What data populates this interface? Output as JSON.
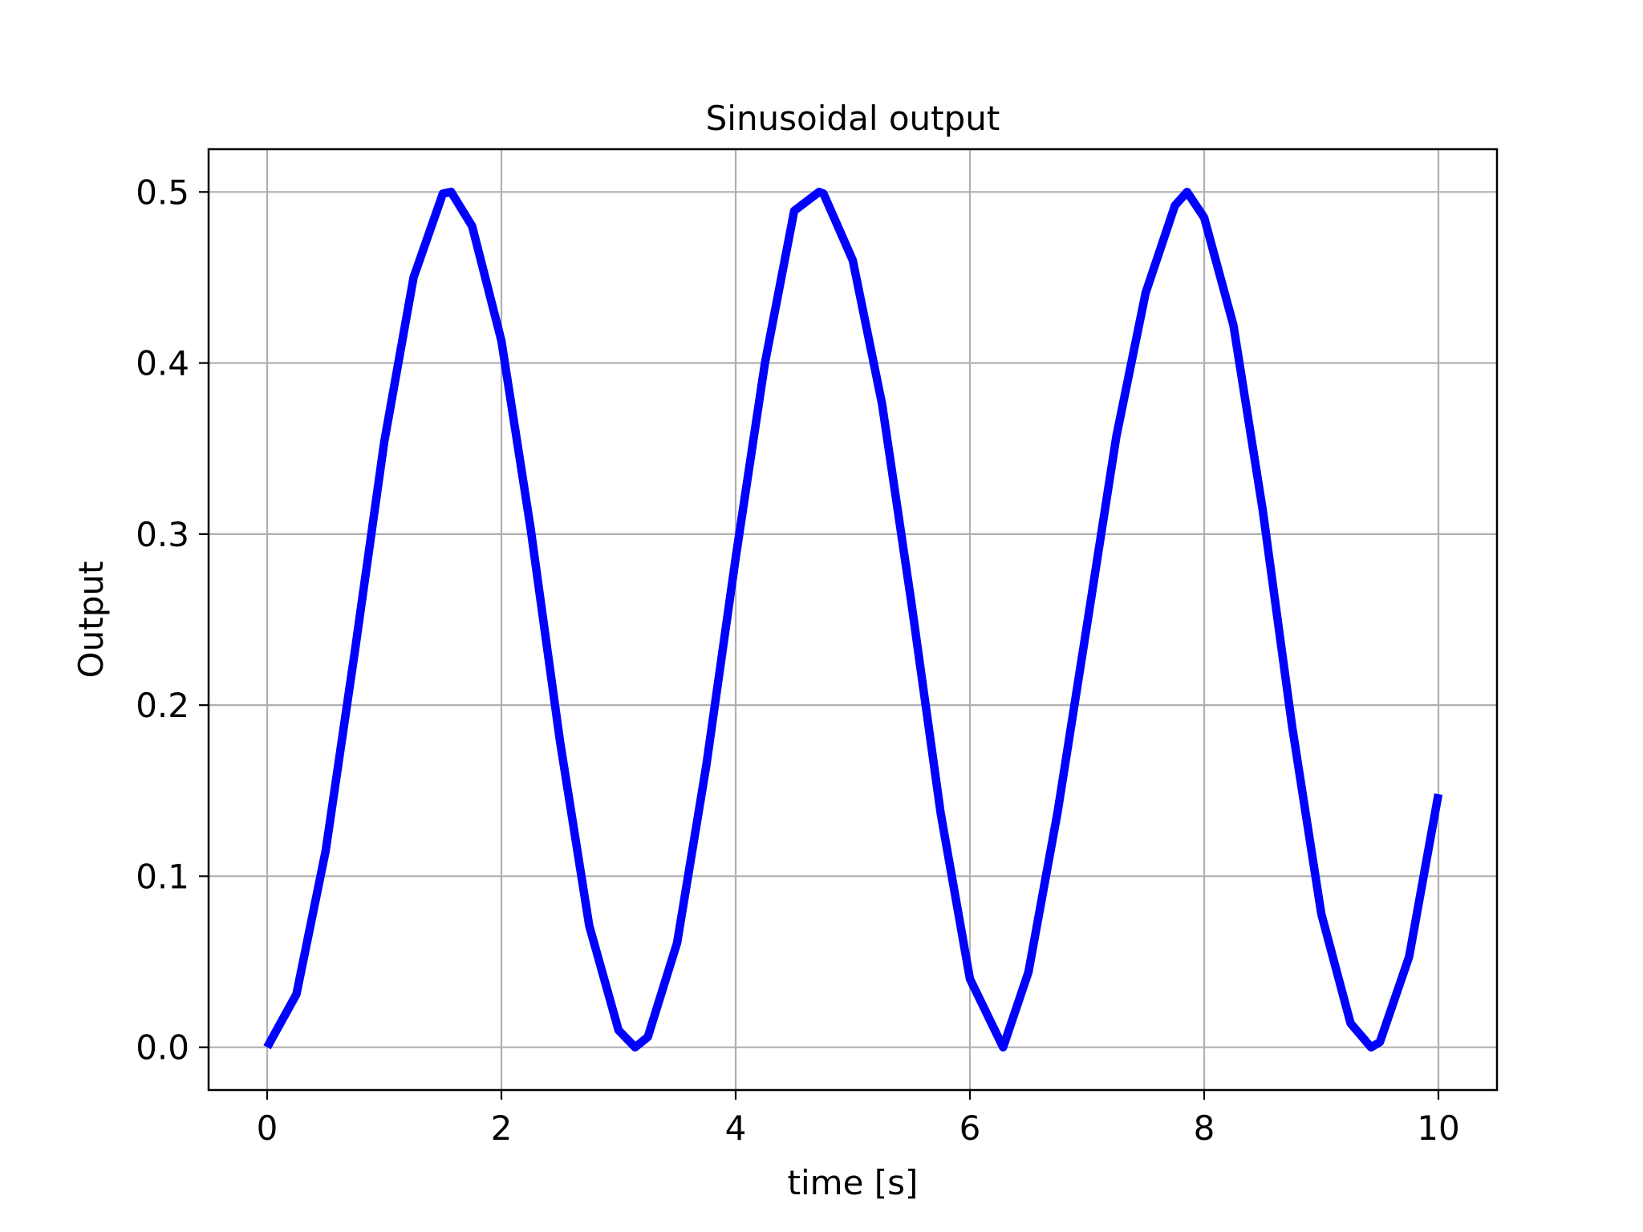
{
  "chart_data": {
    "type": "line",
    "title": "Sinusoidal output",
    "xlabel": "time [s]",
    "ylabel": "Output",
    "xlim": [
      -0.5,
      10.5
    ],
    "ylim": [
      -0.025,
      0.525
    ],
    "x_ticks": [
      0,
      2,
      4,
      6,
      8,
      10
    ],
    "x_tick_labels": [
      "0",
      "2",
      "4",
      "6",
      "8",
      "10"
    ],
    "y_ticks": [
      0.0,
      0.1,
      0.2,
      0.3,
      0.4,
      0.5
    ],
    "y_tick_labels": [
      "0.0",
      "0.1",
      "0.2",
      "0.3",
      "0.4",
      "0.5"
    ],
    "grid": true,
    "legend": false,
    "series": [
      {
        "color": "#0000ff",
        "x": [
          0.0,
          0.25,
          0.5,
          0.75,
          1.0,
          1.25,
          1.5,
          1.5708,
          1.75,
          2.0,
          2.25,
          2.5,
          2.75,
          3.0,
          3.1416,
          3.25,
          3.5,
          3.75,
          4.0,
          4.25,
          4.5,
          4.7124,
          4.75,
          5.0,
          5.25,
          5.5,
          5.75,
          6.0,
          6.2832,
          6.5,
          6.75,
          7.0,
          7.25,
          7.5,
          7.75,
          7.854,
          8.0,
          8.25,
          8.5,
          8.75,
          9.0,
          9.25,
          9.4248,
          9.5,
          9.75,
          10.0
        ],
        "values": [
          0.0,
          0.031,
          0.115,
          0.232,
          0.354,
          0.45,
          0.499,
          0.5,
          0.48,
          0.413,
          0.303,
          0.179,
          0.071,
          0.01,
          0.0,
          0.006,
          0.061,
          0.165,
          0.286,
          0.4,
          0.489,
          0.5,
          0.499,
          0.46,
          0.376,
          0.26,
          0.137,
          0.04,
          0.0,
          0.044,
          0.138,
          0.247,
          0.357,
          0.441,
          0.492,
          0.5,
          0.485,
          0.422,
          0.314,
          0.188,
          0.078,
          0.014,
          0.0,
          0.003,
          0.053,
          0.148
        ]
      }
    ]
  }
}
